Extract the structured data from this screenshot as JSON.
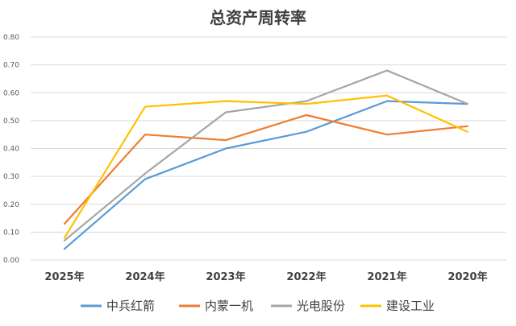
{
  "chart_data": {
    "type": "line",
    "title": "总资产周转率",
    "categories": [
      "2025年",
      "2024年",
      "2023年",
      "2022年",
      "2021年",
      "2020年"
    ],
    "ylim": [
      0,
      0.8
    ],
    "yticks": [
      "0.00",
      "0.10",
      "0.20",
      "0.30",
      "0.40",
      "0.50",
      "0.60",
      "0.70",
      "0.80"
    ],
    "grid": true,
    "legend_position": "bottom",
    "series": [
      {
        "name": "中兵红箭",
        "color": "#5b9bd5",
        "values": [
          0.04,
          0.29,
          0.4,
          0.46,
          0.57,
          0.56
        ]
      },
      {
        "name": "内蒙一机",
        "color": "#ed7d31",
        "values": [
          0.13,
          0.45,
          0.43,
          0.52,
          0.45,
          0.48
        ]
      },
      {
        "name": "光电股份",
        "color": "#a5a5a5",
        "values": [
          0.07,
          0.31,
          0.53,
          0.57,
          0.68,
          0.56
        ]
      },
      {
        "name": "建设工业",
        "color": "#ffc000",
        "values": [
          0.08,
          0.55,
          0.57,
          0.56,
          0.59,
          0.46
        ]
      }
    ]
  }
}
